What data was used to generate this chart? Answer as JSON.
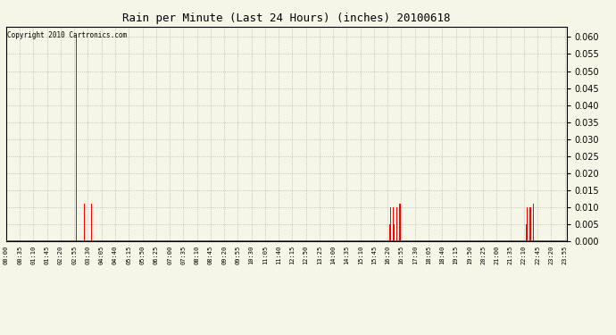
{
  "title": "Rain per Minute (Last 24 Hours) (inches) 20100618",
  "copyright": "Copyright 2010 Cartronics.com",
  "bar_color": "#ff0000",
  "bg_color": "#f5f5e8",
  "grid_color": "#aaaaaa",
  "ylim": [
    0.0,
    0.063
  ],
  "yticks": [
    0.0,
    0.005,
    0.01,
    0.015,
    0.02,
    0.025,
    0.03,
    0.035,
    0.04,
    0.045,
    0.05,
    0.055,
    0.06
  ],
  "total_minutes": 1440,
  "tick_interval": 35,
  "rain_events": [
    {
      "minute": 180,
      "value": 0.06
    },
    {
      "minute": 195,
      "value": 0.011
    },
    {
      "minute": 198,
      "value": 0.005
    },
    {
      "minute": 201,
      "value": 0.011
    },
    {
      "minute": 204,
      "value": 0.005
    },
    {
      "minute": 207,
      "value": 0.01
    },
    {
      "minute": 213,
      "value": 0.011
    },
    {
      "minute": 219,
      "value": 0.011
    },
    {
      "minute": 985,
      "value": 0.005
    },
    {
      "minute": 988,
      "value": 0.01
    },
    {
      "minute": 991,
      "value": 0.005
    },
    {
      "minute": 994,
      "value": 0.01
    },
    {
      "minute": 997,
      "value": 0.005
    },
    {
      "minute": 1000,
      "value": 0.01
    },
    {
      "minute": 1003,
      "value": 0.01
    },
    {
      "minute": 1010,
      "value": 0.011
    },
    {
      "minute": 1013,
      "value": 0.011
    },
    {
      "minute": 1330,
      "value": 0.005
    },
    {
      "minute": 1333,
      "value": 0.01
    },
    {
      "minute": 1336,
      "value": 0.005
    },
    {
      "minute": 1339,
      "value": 0.01
    },
    {
      "minute": 1342,
      "value": 0.005
    },
    {
      "minute": 1345,
      "value": 0.01
    },
    {
      "minute": 1348,
      "value": 0.01
    },
    {
      "minute": 1355,
      "value": 0.011
    },
    {
      "minute": 1358,
      "value": 0.011
    }
  ]
}
